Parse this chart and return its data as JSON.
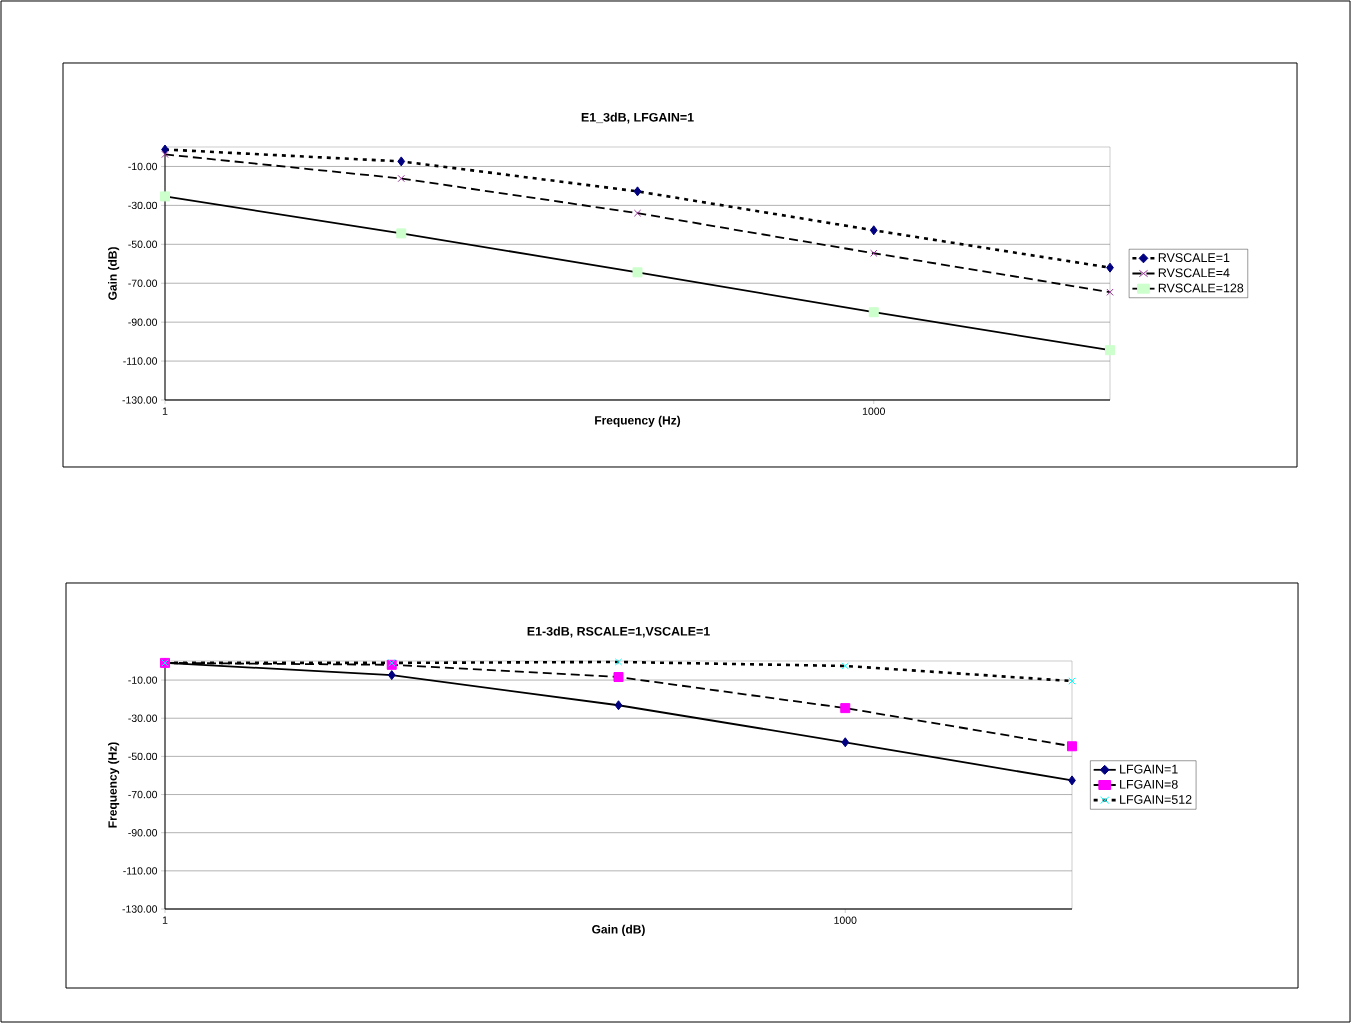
{
  "chart_data": [
    {
      "type": "line",
      "title": "E1_3dB, LFGAIN=1",
      "xlabel": "Frequency (Hz)",
      "ylabel": "Gain (dB)",
      "log": "x",
      "grid": "y",
      "legend": "right",
      "x": [
        1,
        10,
        100,
        1000,
        10000
      ],
      "xlim": [
        1,
        10000
      ],
      "xticks": [
        1,
        1000
      ],
      "ylim": [
        -130,
        0
      ],
      "yticks": [
        {
          "value": -130,
          "label": "-130.00"
        },
        {
          "value": -110,
          "label": "-110.00"
        },
        {
          "value": -90,
          "label": "-90.00"
        },
        {
          "value": -70,
          "label": "-70.00"
        },
        {
          "value": -50,
          "label": "-50.00"
        },
        {
          "value": -30,
          "label": "-30.00"
        },
        {
          "value": -10,
          "label": "-10.00"
        }
      ],
      "series": [
        {
          "name": "RVSCALE=1",
          "color": "#000080",
          "marker": "diamond",
          "line_style": "dotted",
          "values": [
            -1.3,
            -7.4,
            -22.8,
            -42.8,
            -62
          ]
        },
        {
          "name": "RVSCALE=4",
          "color": "#993399",
          "marker": "cross",
          "line_style": "dashed",
          "values": [
            -3.8,
            -16.2,
            -34,
            -54.6,
            -74.6
          ]
        },
        {
          "name": "RVSCALE=128",
          "color": "#ccffcc",
          "marker": "square",
          "line_style": "solid",
          "values": [
            -25.4,
            -44.4,
            -64.4,
            -84.9,
            -104.4
          ]
        }
      ]
    },
    {
      "type": "line",
      "title": "E1-3dB, RSCALE=1,VSCALE=1",
      "xlabel": "Gain (dB)",
      "ylabel": "Frequency (Hz)",
      "log": "x",
      "grid": "y",
      "legend": "right",
      "x": [
        1,
        10,
        100,
        1000,
        10000
      ],
      "xlim": [
        1,
        10000
      ],
      "xticks": [
        1,
        1000
      ],
      "ylim": [
        -130,
        0
      ],
      "yticks": [
        {
          "value": -130,
          "label": "-130.00"
        },
        {
          "value": -110,
          "label": "-110.00"
        },
        {
          "value": -90,
          "label": "-90.00"
        },
        {
          "value": -70,
          "label": "-70.00"
        },
        {
          "value": -50,
          "label": "-50.00"
        },
        {
          "value": -30,
          "label": "-30.00"
        },
        {
          "value": -10,
          "label": "-10.00"
        }
      ],
      "series": [
        {
          "name": "LFGAIN=1",
          "color": "#000080",
          "marker": "diamond",
          "line_style": "solid",
          "values": [
            -1,
            -7.4,
            -23.2,
            -42.6,
            -62.6
          ]
        },
        {
          "name": "LFGAIN=8",
          "color": "#ff00ff",
          "marker": "square",
          "line_style": "dashed",
          "values": [
            -1,
            -2,
            -8.4,
            -24.7,
            -44.7
          ]
        },
        {
          "name": "LFGAIN=512",
          "color": "#00ffff",
          "marker": "cross",
          "line_style": "dotted",
          "values": [
            -1,
            -1,
            -0.5,
            -2.6,
            -10.5
          ]
        }
      ]
    }
  ]
}
